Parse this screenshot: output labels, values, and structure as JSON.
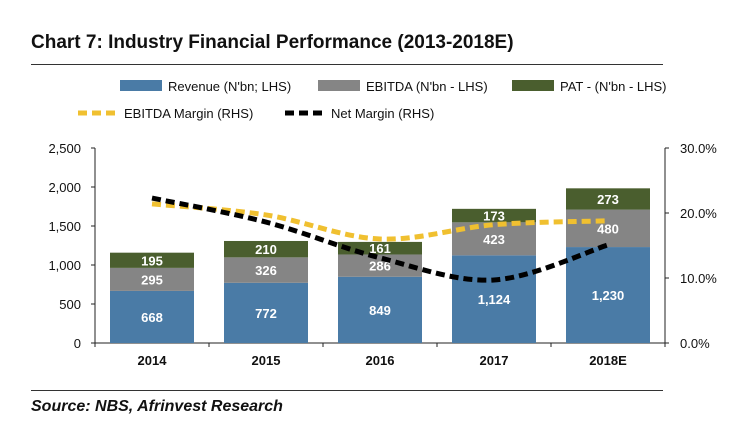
{
  "title": "Chart 7: Industry Financial Performance (2013-2018E)",
  "source": "Source: NBS, Afrinvest Research",
  "chart_data": {
    "type": "bar",
    "stacked": true,
    "categories": [
      "2014",
      "2015",
      "2016",
      "2017",
      "2018E"
    ],
    "series": [
      {
        "name": "Revenue (N'bn; LHS)",
        "color": "#4a7ba6",
        "axis": "left",
        "values": [
          668,
          772,
          849,
          1124,
          1230
        ]
      },
      {
        "name": "EBITDA (N'bn - LHS)",
        "color": "#858585",
        "axis": "left",
        "values": [
          295,
          326,
          286,
          423,
          480
        ]
      },
      {
        "name": "PAT - (N'bn - LHS)",
        "color": "#4a5e2e",
        "axis": "left",
        "values": [
          195,
          210,
          161,
          173,
          273
        ]
      },
      {
        "name": "EBITDA Margin (RHS)",
        "type": "line",
        "style": "dashed",
        "color": "#f0c030",
        "axis": "right",
        "values": [
          21.4,
          19.7,
          16.0,
          18.2,
          18.8
        ]
      },
      {
        "name": "Net Margin (RHS)",
        "type": "line",
        "style": "dashed",
        "color": "#000000",
        "axis": "right",
        "values": [
          22.3,
          18.6,
          13.1,
          9.7,
          15.1
        ]
      }
    ],
    "left_axis": {
      "ylim": [
        0,
        2500
      ],
      "ticks": [
        "0",
        "500",
        "1,000",
        "1,500",
        "2,000",
        "2,500"
      ]
    },
    "right_axis": {
      "ylim": [
        0,
        30
      ],
      "ticks": [
        "0.0%",
        "10.0%",
        "20.0%",
        "30.0%"
      ]
    },
    "legend_placement": "top",
    "grid": false
  }
}
